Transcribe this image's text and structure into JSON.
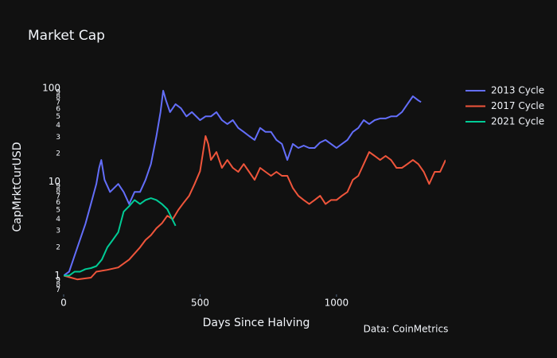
{
  "chart_data": {
    "type": "line",
    "title": "Market Cap",
    "x_label": "Days Since Halving",
    "y_label": "CapMrktCurUSD",
    "annotation": "Data: CoinMetrics",
    "xlim": [
      0,
      1400
    ],
    "xticks": [
      0,
      500,
      1000
    ],
    "ylim": [
      0.63,
      270
    ],
    "log_y": true,
    "grid": false,
    "legend": "top-right",
    "yticks": [
      {
        "value": 0.7,
        "label": "7"
      },
      {
        "value": 0.8,
        "label": "8"
      },
      {
        "value": 0.9,
        "label": "9"
      },
      1,
      2,
      3,
      4,
      5,
      6,
      7,
      8,
      9,
      10,
      {
        "value": 20,
        "label": "2"
      },
      {
        "value": 30,
        "label": "3"
      },
      {
        "value": 40,
        "label": "4"
      },
      {
        "value": 50,
        "label": "5"
      },
      {
        "value": 60,
        "label": "6"
      },
      {
        "value": 70,
        "label": "7"
      },
      {
        "value": 80,
        "label": "8"
      },
      {
        "value": 90,
        "label": "9"
      },
      100
    ],
    "series": [
      {
        "name": "2013 Cycle",
        "color": "#636efa",
        "x": [
          0,
          20,
          40,
          60,
          80,
          100,
          120,
          130,
          138,
          150,
          170,
          200,
          220,
          240,
          260,
          280,
          300,
          320,
          340,
          355,
          365,
          375,
          390,
          410,
          430,
          450,
          470,
          500,
          520,
          540,
          560,
          580,
          600,
          620,
          640,
          660,
          680,
          700,
          720,
          740,
          760,
          780,
          800,
          820,
          840,
          860,
          880,
          900,
          920,
          940,
          960,
          980,
          1000,
          1020,
          1040,
          1060,
          1080,
          1100,
          1120,
          1140,
          1160,
          1180,
          1200,
          1220,
          1240,
          1260,
          1280,
          1300,
          1310
        ],
        "values": [
          1,
          1.1,
          1.63,
          2.42,
          3.57,
          5.83,
          9.52,
          14.1,
          17.1,
          10.5,
          7.8,
          9.5,
          7.8,
          5.8,
          7.8,
          7.8,
          10.5,
          15.5,
          30.8,
          55.5,
          94,
          74,
          55.5,
          67.5,
          61,
          50,
          55.5,
          45.6,
          50,
          50,
          55.5,
          45.6,
          41.4,
          45.6,
          37.6,
          34.1,
          30.8,
          28,
          37.6,
          34.1,
          34.1,
          28,
          25.4,
          17.1,
          25.4,
          23,
          24.4,
          23,
          23,
          26.3,
          28,
          25.4,
          23,
          25.4,
          28,
          34.1,
          37.6,
          45.6,
          41.4,
          45.6,
          47.5,
          47.5,
          50,
          50,
          55.5,
          67.5,
          82,
          74,
          71
        ]
      },
      {
        "name": "2017 Cycle",
        "color": "#EF553B",
        "x": [
          0,
          50,
          100,
          120,
          160,
          200,
          240,
          280,
          300,
          320,
          340,
          360,
          380,
          400,
          420,
          440,
          460,
          480,
          500,
          510,
          520,
          530,
          540,
          560,
          580,
          600,
          620,
          640,
          660,
          680,
          700,
          720,
          740,
          760,
          780,
          800,
          820,
          840,
          860,
          880,
          900,
          920,
          940,
          960,
          980,
          1000,
          1020,
          1040,
          1060,
          1080,
          1100,
          1120,
          1140,
          1160,
          1180,
          1200,
          1220,
          1240,
          1260,
          1280,
          1300,
          1320,
          1340,
          1360,
          1380,
          1400
        ],
        "values": [
          1,
          0.91,
          0.95,
          1.1,
          1.15,
          1.22,
          1.48,
          2,
          2.4,
          2.7,
          3.2,
          3.6,
          4.35,
          4,
          5,
          6,
          7.1,
          9.5,
          13,
          20,
          30.8,
          25.4,
          17.1,
          20.8,
          14.1,
          17.1,
          14.1,
          12.8,
          15.5,
          12.8,
          10.5,
          14.1,
          12.8,
          11.6,
          12.8,
          11.6,
          11.6,
          8.6,
          7.1,
          6.4,
          5.8,
          6.4,
          7.1,
          5.8,
          6.4,
          6.4,
          7.1,
          7.8,
          10.5,
          11.6,
          15.5,
          20.8,
          18.9,
          17.1,
          18.9,
          17.1,
          14.1,
          14.1,
          15.5,
          17.1,
          15.5,
          12.8,
          9.5,
          12.8,
          12.8,
          17.1
        ]
      },
      {
        "name": "2021 Cycle",
        "color": "#00cc96",
        "x": [
          0,
          20,
          40,
          60,
          80,
          100,
          120,
          140,
          160,
          180,
          200,
          220,
          240,
          260,
          280,
          300,
          320,
          340,
          360,
          380,
          400,
          410
        ],
        "values": [
          1,
          1,
          1.1,
          1.1,
          1.17,
          1.2,
          1.26,
          1.48,
          2,
          2.4,
          2.9,
          4.8,
          5.5,
          6.4,
          5.8,
          6.4,
          6.7,
          6.4,
          5.8,
          5.1,
          3.9,
          3.4
        ]
      }
    ]
  }
}
